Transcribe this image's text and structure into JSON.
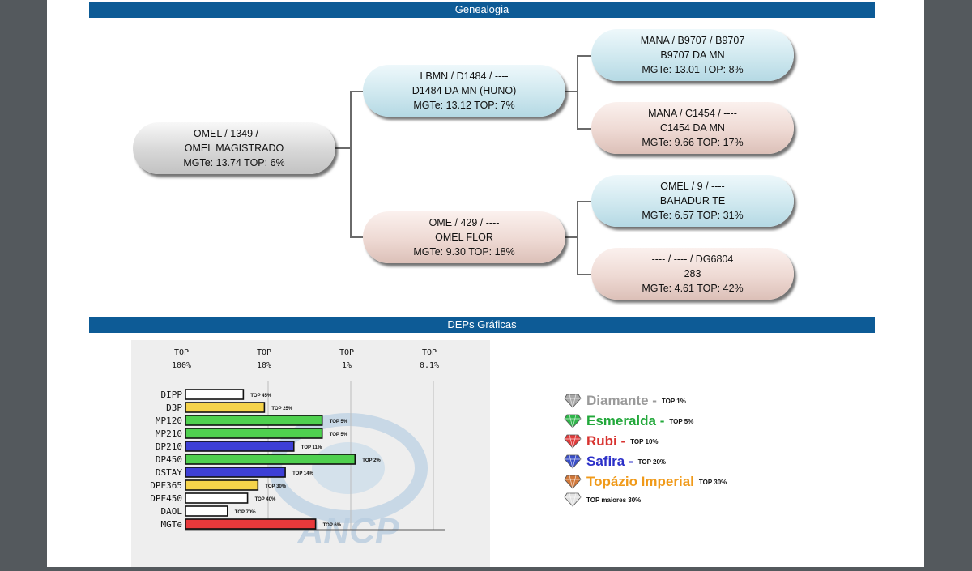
{
  "sections": {
    "genealogy_title": "Genealogia",
    "deps_title": "DEPs Gráficas"
  },
  "pedigree": {
    "animal": {
      "line1": "OMEL / 1349 / ----",
      "line2": "OMEL MAGISTRADO",
      "line3": "MGTe: 13.74   TOP: 6%"
    },
    "sire": {
      "line1": "LBMN / D1484 / ----",
      "line2": "D1484 DA MN (HUNO)",
      "line3": "MGTe: 13.12   TOP: 7%"
    },
    "dam": {
      "line1": "OME / 429 / ----",
      "line2": "OMEL FLOR",
      "line3": "MGTe: 9.30   TOP: 18%"
    },
    "sire_sire": {
      "line1": "MANA / B9707 / B9707",
      "line2": "B9707 DA MN",
      "line3": "MGTe: 13.01   TOP: 8%"
    },
    "sire_dam": {
      "line1": "MANA / C1454 / ----",
      "line2": "C1454 DA MN",
      "line3": "MGTe: 9.66   TOP: 17%"
    },
    "dam_sire": {
      "line1": "OMEL / 9 / ----",
      "line2": "BAHADUR TE",
      "line3": "MGTe: 6.57   TOP: 31%"
    },
    "dam_dam": {
      "line1": "---- / ---- / DG6804",
      "line2": "283",
      "line3": "MGTe: 4.61   TOP: 42%"
    }
  },
  "chart_data": {
    "type": "bar",
    "orientation": "horizontal",
    "axis_ticks": [
      {
        "line1": "TOP",
        "line2": "100%"
      },
      {
        "line1": "TOP",
        "line2": "10%"
      },
      {
        "line1": "TOP",
        "line2": "1%"
      },
      {
        "line1": "TOP",
        "line2": "0.1%"
      }
    ],
    "categories": [
      "DIPP",
      "D3P",
      "MP120",
      "MP210",
      "DP210",
      "DP450",
      "DSTAY",
      "DPE365",
      "DPE450",
      "DAOL",
      "MGTe"
    ],
    "top_percent": [
      45,
      25,
      5,
      5,
      11,
      2,
      14,
      30,
      40,
      70,
      6
    ],
    "labels": [
      "TOP 45%",
      "TOP 25%",
      "TOP 5%",
      "TOP 5%",
      "TOP 11%",
      "TOP 2%",
      "TOP 14%",
      "TOP 30%",
      "TOP 40%",
      "TOP 70%",
      "TOP 6%"
    ],
    "colors": [
      "#ffffff",
      "#f5d34a",
      "#4fd04f",
      "#4fd04f",
      "#3d3fd6",
      "#4fd04f",
      "#3d3fd6",
      "#f5d34a",
      "#ffffff",
      "#ffffff",
      "#e8393b"
    ],
    "grid": true,
    "watermark_text": "ANCP"
  },
  "legend": [
    {
      "name": "Diamante",
      "suffix": " - ",
      "top": "TOP 1%",
      "color": "#9a9a9a",
      "gem": "#a8a8a8"
    },
    {
      "name": "Esmeralda",
      "suffix": " - ",
      "top": "TOP 5%",
      "color": "#22a83a",
      "gem": "#2fb54a"
    },
    {
      "name": "Rubi",
      "suffix": " - ",
      "top": "TOP 10%",
      "color": "#d8322f",
      "gem": "#e03c3c"
    },
    {
      "name": "Safira",
      "suffix": " - ",
      "top": "TOP 20%",
      "color": "#2b2fc8",
      "gem": "#3a4fc8"
    },
    {
      "name": "Topázio Imperial",
      "suffix": " ",
      "top": "TOP 30%",
      "color": "#f09a1a",
      "gem": "#d0783a"
    },
    {
      "name": "",
      "suffix": "",
      "top": "TOP maiores 30%",
      "color": "#111111",
      "gem": "#e2e2e2"
    }
  ]
}
